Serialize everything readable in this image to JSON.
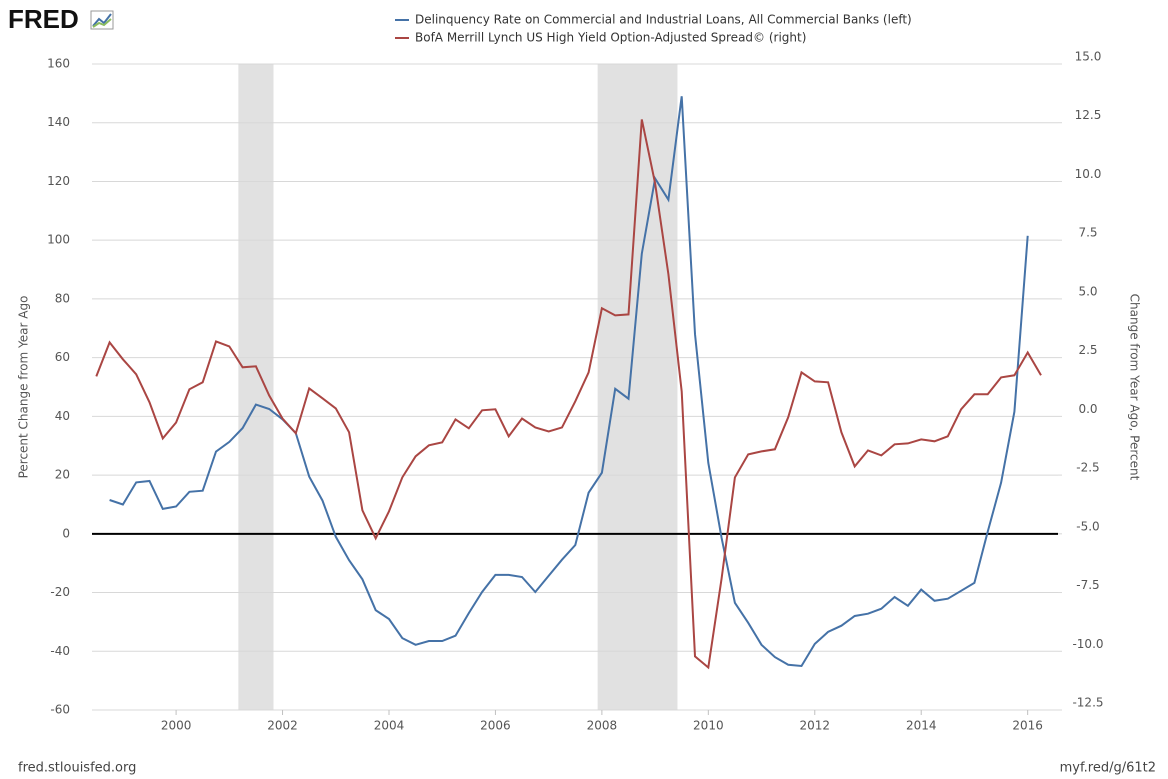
{
  "logo": "FRED",
  "footer": {
    "left": "fred.stlouisfed.org",
    "right": "myf.red/g/61t2"
  },
  "chart_data": {
    "type": "line",
    "ylabel": "Percent Change from Year Ago",
    "y2label": "Change from Year Ago, Percent",
    "xlim": [
      1998.42,
      2016.57
    ],
    "xticks": [
      2000,
      2002,
      2004,
      2006,
      2008,
      2010,
      2012,
      2014,
      2016
    ],
    "ylim": [
      -60,
      160
    ],
    "yticks": [
      -60,
      -40,
      -20,
      0,
      20,
      40,
      60,
      80,
      100,
      120,
      140,
      160
    ],
    "y2lim": [
      -12.5,
      15
    ],
    "y2ticks": [
      -12.5,
      {
        "value": -10,
        "label": "-10.0"
      },
      -7.5,
      {
        "value": -5,
        "label": "-5.0"
      },
      -2.5,
      {
        "value": 0,
        "label": "0.0"
      },
      2.5,
      {
        "value": 5,
        "label": "5.0"
      },
      7.5,
      {
        "value": 10,
        "label": "10.0"
      },
      12.5,
      {
        "value": 15,
        "label": "15.0"
      }
    ],
    "grid": true,
    "zero_line": 0,
    "recessions": [
      [
        2001.17,
        2001.83
      ],
      [
        2007.92,
        2009.42
      ]
    ],
    "series": [
      {
        "name": "Delinquency Rate on Commercial and Industrial Loans, All Commercial Banks (left)",
        "color": "#4572a7",
        "axis": "y",
        "x": [
          1998.75,
          1999,
          1999.25,
          1999.5,
          1999.75,
          2000,
          2000.25,
          2000.5,
          2000.75,
          2001,
          2001.25,
          2001.5,
          2001.75,
          2002,
          2002.25,
          2002.5,
          2002.75,
          2003,
          2003.25,
          2003.5,
          2003.75,
          2004,
          2004.25,
          2004.5,
          2004.75,
          2005,
          2005.25,
          2005.5,
          2005.75,
          2006,
          2006.25,
          2006.5,
          2006.75,
          2007,
          2007.25,
          2007.5,
          2007.75,
          2008,
          2008.25,
          2008.5,
          2008.75,
          2009,
          2009.25,
          2009.5,
          2009.75,
          2010,
          2010.25,
          2010.5,
          2010.75,
          2011,
          2011.25,
          2011.5,
          2011.75,
          2012,
          2012.25,
          2012.5,
          2012.75,
          2013,
          2013.25,
          2013.5,
          2013.75,
          2014,
          2014.25,
          2014.5,
          2014.75,
          2015,
          2015.25,
          2015.5,
          2015.75,
          2016
        ],
        "values": [
          11.5,
          10,
          17.5,
          18,
          8.5,
          9.3,
          14.3,
          14.7,
          28,
          31.3,
          36,
          44,
          42.5,
          39,
          34.3,
          19.5,
          11.3,
          -1,
          -9,
          -15.5,
          -26,
          -29,
          -35.5,
          -37.8,
          -36.5,
          -36.5,
          -34.7,
          -27,
          -19.8,
          -14,
          -14,
          -14.7,
          -19.8,
          -14.3,
          -8.8,
          -3.8,
          14,
          20.8,
          49.4,
          46,
          95.4,
          121,
          113.8,
          149,
          68,
          24.2,
          -1.4,
          -23.5,
          -30.3,
          -37.8,
          -42,
          -44.6,
          -45,
          -37.5,
          -33.4,
          -31.3,
          -28,
          -27.2,
          -25.5,
          -21.5,
          -24.5,
          -19,
          -22.8,
          -22.1,
          -19.4,
          -16.7,
          0.7,
          17.4,
          41.6,
          101.5
        ]
      },
      {
        "name": "BofA Merrill Lynch US High Yield Option-Adjusted Spread© (right)",
        "color": "#aa4643",
        "axis": "y2",
        "x": [
          1998.5,
          1998.75,
          1999,
          1999.25,
          1999.5,
          1999.75,
          2000,
          2000.25,
          2000.5,
          2000.75,
          2001,
          2001.25,
          2001.5,
          2001.75,
          2002,
          2002.25,
          2002.5,
          2002.75,
          2003,
          2003.25,
          2003.5,
          2003.75,
          2004,
          2004.25,
          2004.5,
          2004.75,
          2005,
          2005.25,
          2005.5,
          2005.75,
          2006,
          2006.25,
          2006.5,
          2006.75,
          2007,
          2007.25,
          2007.5,
          2007.75,
          2008,
          2008.25,
          2008.5,
          2008.75,
          2009,
          2009.25,
          2009.5,
          2009.75,
          2010,
          2010.25,
          2010.5,
          2010.75,
          2011,
          2011.25,
          2011.5,
          2011.75,
          2012,
          2012.25,
          2012.5,
          2012.75,
          2013,
          2013.25,
          2013.5,
          2013.75,
          2014,
          2014.25,
          2014.5,
          2014.75,
          2015,
          2015.25,
          2015.5,
          2015.75,
          2016,
          2016.25
        ],
        "values": [
          1.7,
          3.15,
          2.43,
          1.79,
          0.6,
          -0.94,
          -0.26,
          1.15,
          1.45,
          3.19,
          2.98,
          2.09,
          2.13,
          0.89,
          -0.09,
          -0.72,
          1.19,
          0.77,
          0.34,
          -0.68,
          -4.0,
          -5.19,
          -4.04,
          -2.6,
          -1.7,
          -1.23,
          -1.11,
          -0.13,
          -0.51,
          0.26,
          0.3,
          -0.85,
          -0.09,
          -0.47,
          -0.64,
          -0.47,
          0.64,
          1.87,
          4.6,
          4.3,
          4.34,
          12.64,
          9.92,
          6.05,
          1.06,
          -10.22,
          -10.69,
          -6.9,
          -2.6,
          -1.62,
          -1.49,
          -1.4,
          -0.04,
          1.87,
          1.49,
          1.45,
          -0.68,
          -2.13,
          -1.45,
          -1.66,
          -1.19,
          -1.15,
          -0.98,
          -1.06,
          -0.85,
          0.3,
          0.94,
          0.94,
          1.66,
          1.75,
          2.72,
          1.75
        ]
      }
    ]
  }
}
